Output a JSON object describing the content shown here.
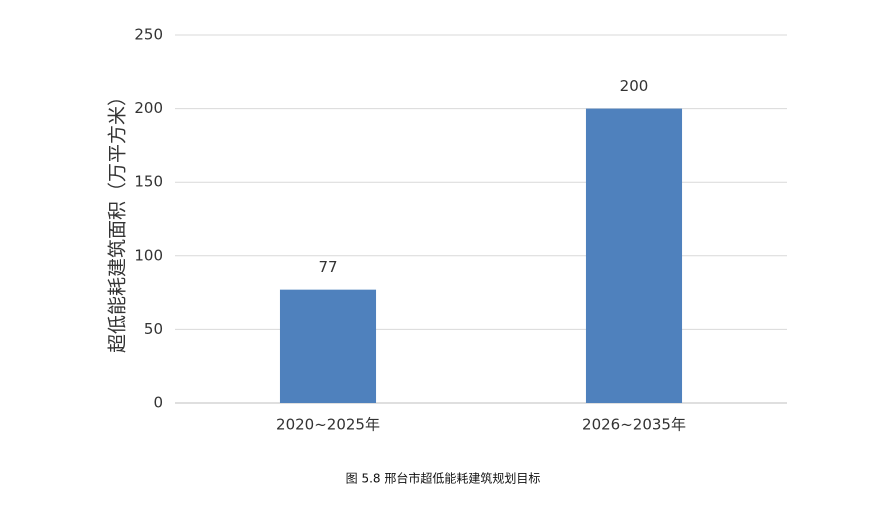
{
  "chart_data": {
    "type": "bar",
    "title": "图 5.8  邢台市超低能耗建筑规划目标",
    "y_label": "超低能耗建筑面积（万平方米）",
    "categories": [
      "2020~2025年",
      "2026~2035年"
    ],
    "values": [
      77,
      200
    ],
    "color": "#4f81bd",
    "ylim": [
      0,
      250
    ],
    "yticks": [
      0,
      50,
      100,
      150,
      200,
      250
    ],
    "grid": true
  }
}
